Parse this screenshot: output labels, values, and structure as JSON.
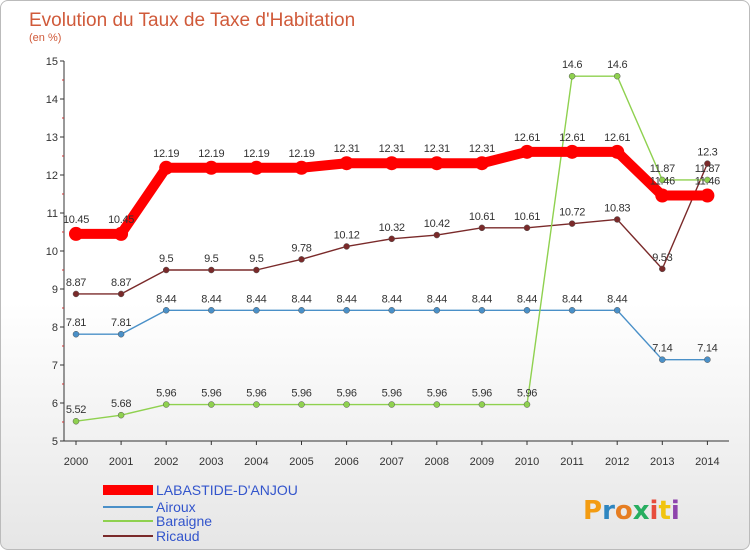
{
  "chart_data": {
    "type": "line",
    "title": "Evolution du Taux de Taxe d'Habitation",
    "subtitle": "(en %)",
    "x": [
      "2000",
      "2001",
      "2002",
      "2003",
      "2004",
      "2005",
      "2006",
      "2007",
      "2008",
      "2009",
      "2010",
      "2011",
      "2012",
      "2013",
      "2014"
    ],
    "ylim": [
      5,
      15
    ],
    "yticks": [
      "5",
      "6",
      "7",
      "8",
      "9",
      "10",
      "11",
      "12",
      "13",
      "14",
      "15"
    ],
    "grid": false,
    "legend_position": "bottom-left",
    "series": [
      {
        "name": "LABASTIDE-D'ANJOU",
        "color": "#ff0000",
        "values": [
          10.45,
          10.45,
          12.19,
          12.19,
          12.19,
          12.19,
          12.31,
          12.31,
          12.31,
          12.31,
          12.61,
          12.61,
          12.61,
          11.46,
          11.46
        ],
        "labels": [
          "10.45",
          "10.45",
          "12.19",
          "12.19",
          "12.19",
          "12.19",
          "12.31",
          "12.31",
          "12.31",
          "12.31",
          "12.61",
          "12.61",
          "12.61",
          "11.46",
          "11.46"
        ]
      },
      {
        "name": "Airoux",
        "color": "#4a90c8",
        "values": [
          7.81,
          7.81,
          8.44,
          8.44,
          8.44,
          8.44,
          8.44,
          8.44,
          8.44,
          8.44,
          8.44,
          8.44,
          8.44,
          7.14,
          7.14
        ],
        "labels": [
          "7.81",
          "7.81",
          "8.44",
          "8.44",
          "8.44",
          "8.44",
          "8.44",
          "8.44",
          "8.44",
          "8.44",
          "8.44",
          "8.44",
          "8.44",
          "7.14",
          "7.14"
        ]
      },
      {
        "name": "Baraigne",
        "color": "#8fd14f",
        "values": [
          5.52,
          5.68,
          5.96,
          5.96,
          5.96,
          5.96,
          5.96,
          5.96,
          5.96,
          5.96,
          5.96,
          14.6,
          14.6,
          11.87,
          11.87
        ],
        "labels": [
          "5.52",
          "5.68",
          "5.96",
          "5.96",
          "5.96",
          "5.96",
          "5.96",
          "5.96",
          "5.96",
          "5.96",
          "5.96",
          "14.6",
          "14.6",
          "11.87",
          "11.87"
        ]
      },
      {
        "name": "Ricaud",
        "color": "#7a2a2a",
        "values": [
          8.87,
          8.87,
          9.5,
          9.5,
          9.5,
          9.78,
          10.12,
          10.32,
          10.42,
          10.61,
          10.61,
          10.72,
          10.83,
          9.53,
          12.3
        ],
        "labels": [
          "8.87",
          "8.87",
          "9.5",
          "9.5",
          "9.5",
          "9.78",
          "10.12",
          "10.32",
          "10.42",
          "10.61",
          "10.61",
          "10.72",
          "10.83",
          "9.53",
          "12.3"
        ]
      }
    ]
  },
  "logo": {
    "text": "Proxiti"
  }
}
